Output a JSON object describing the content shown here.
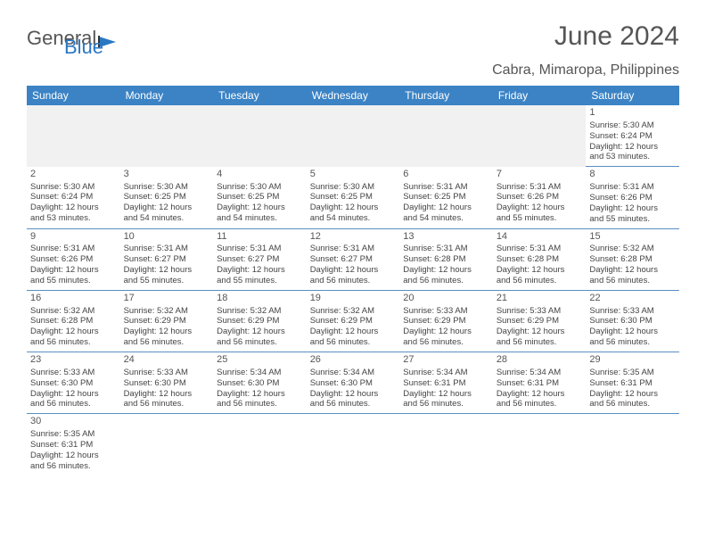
{
  "logo": {
    "text1": "General",
    "text2": "Blue"
  },
  "title": "June 2024",
  "location": "Cabra, Mimaropa, Philippines",
  "weekdays": [
    "Sunday",
    "Monday",
    "Tuesday",
    "Wednesday",
    "Thursday",
    "Friday",
    "Saturday"
  ],
  "colors": {
    "header_bg": "#3b83c5",
    "header_text": "#ffffff",
    "title_text": "#555555",
    "cell_border": "#5a8fc2",
    "blank_bg": "#f1f1f1",
    "logo_blue": "#2a77c2"
  },
  "grid": [
    [
      null,
      null,
      null,
      null,
      null,
      null,
      {
        "n": "1",
        "sr": "Sunrise: 5:30 AM",
        "ss": "Sunset: 6:24 PM",
        "d1": "Daylight: 12 hours",
        "d2": "and 53 minutes."
      }
    ],
    [
      {
        "n": "2",
        "sr": "Sunrise: 5:30 AM",
        "ss": "Sunset: 6:24 PM",
        "d1": "Daylight: 12 hours",
        "d2": "and 53 minutes."
      },
      {
        "n": "3",
        "sr": "Sunrise: 5:30 AM",
        "ss": "Sunset: 6:25 PM",
        "d1": "Daylight: 12 hours",
        "d2": "and 54 minutes."
      },
      {
        "n": "4",
        "sr": "Sunrise: 5:30 AM",
        "ss": "Sunset: 6:25 PM",
        "d1": "Daylight: 12 hours",
        "d2": "and 54 minutes."
      },
      {
        "n": "5",
        "sr": "Sunrise: 5:30 AM",
        "ss": "Sunset: 6:25 PM",
        "d1": "Daylight: 12 hours",
        "d2": "and 54 minutes."
      },
      {
        "n": "6",
        "sr": "Sunrise: 5:31 AM",
        "ss": "Sunset: 6:25 PM",
        "d1": "Daylight: 12 hours",
        "d2": "and 54 minutes."
      },
      {
        "n": "7",
        "sr": "Sunrise: 5:31 AM",
        "ss": "Sunset: 6:26 PM",
        "d1": "Daylight: 12 hours",
        "d2": "and 55 minutes."
      },
      {
        "n": "8",
        "sr": "Sunrise: 5:31 AM",
        "ss": "Sunset: 6:26 PM",
        "d1": "Daylight: 12 hours",
        "d2": "and 55 minutes."
      }
    ],
    [
      {
        "n": "9",
        "sr": "Sunrise: 5:31 AM",
        "ss": "Sunset: 6:26 PM",
        "d1": "Daylight: 12 hours",
        "d2": "and 55 minutes."
      },
      {
        "n": "10",
        "sr": "Sunrise: 5:31 AM",
        "ss": "Sunset: 6:27 PM",
        "d1": "Daylight: 12 hours",
        "d2": "and 55 minutes."
      },
      {
        "n": "11",
        "sr": "Sunrise: 5:31 AM",
        "ss": "Sunset: 6:27 PM",
        "d1": "Daylight: 12 hours",
        "d2": "and 55 minutes."
      },
      {
        "n": "12",
        "sr": "Sunrise: 5:31 AM",
        "ss": "Sunset: 6:27 PM",
        "d1": "Daylight: 12 hours",
        "d2": "and 56 minutes."
      },
      {
        "n": "13",
        "sr": "Sunrise: 5:31 AM",
        "ss": "Sunset: 6:28 PM",
        "d1": "Daylight: 12 hours",
        "d2": "and 56 minutes."
      },
      {
        "n": "14",
        "sr": "Sunrise: 5:31 AM",
        "ss": "Sunset: 6:28 PM",
        "d1": "Daylight: 12 hours",
        "d2": "and 56 minutes."
      },
      {
        "n": "15",
        "sr": "Sunrise: 5:32 AM",
        "ss": "Sunset: 6:28 PM",
        "d1": "Daylight: 12 hours",
        "d2": "and 56 minutes."
      }
    ],
    [
      {
        "n": "16",
        "sr": "Sunrise: 5:32 AM",
        "ss": "Sunset: 6:28 PM",
        "d1": "Daylight: 12 hours",
        "d2": "and 56 minutes."
      },
      {
        "n": "17",
        "sr": "Sunrise: 5:32 AM",
        "ss": "Sunset: 6:29 PM",
        "d1": "Daylight: 12 hours",
        "d2": "and 56 minutes."
      },
      {
        "n": "18",
        "sr": "Sunrise: 5:32 AM",
        "ss": "Sunset: 6:29 PM",
        "d1": "Daylight: 12 hours",
        "d2": "and 56 minutes."
      },
      {
        "n": "19",
        "sr": "Sunrise: 5:32 AM",
        "ss": "Sunset: 6:29 PM",
        "d1": "Daylight: 12 hours",
        "d2": "and 56 minutes."
      },
      {
        "n": "20",
        "sr": "Sunrise: 5:33 AM",
        "ss": "Sunset: 6:29 PM",
        "d1": "Daylight: 12 hours",
        "d2": "and 56 minutes."
      },
      {
        "n": "21",
        "sr": "Sunrise: 5:33 AM",
        "ss": "Sunset: 6:29 PM",
        "d1": "Daylight: 12 hours",
        "d2": "and 56 minutes."
      },
      {
        "n": "22",
        "sr": "Sunrise: 5:33 AM",
        "ss": "Sunset: 6:30 PM",
        "d1": "Daylight: 12 hours",
        "d2": "and 56 minutes."
      }
    ],
    [
      {
        "n": "23",
        "sr": "Sunrise: 5:33 AM",
        "ss": "Sunset: 6:30 PM",
        "d1": "Daylight: 12 hours",
        "d2": "and 56 minutes."
      },
      {
        "n": "24",
        "sr": "Sunrise: 5:33 AM",
        "ss": "Sunset: 6:30 PM",
        "d1": "Daylight: 12 hours",
        "d2": "and 56 minutes."
      },
      {
        "n": "25",
        "sr": "Sunrise: 5:34 AM",
        "ss": "Sunset: 6:30 PM",
        "d1": "Daylight: 12 hours",
        "d2": "and 56 minutes."
      },
      {
        "n": "26",
        "sr": "Sunrise: 5:34 AM",
        "ss": "Sunset: 6:30 PM",
        "d1": "Daylight: 12 hours",
        "d2": "and 56 minutes."
      },
      {
        "n": "27",
        "sr": "Sunrise: 5:34 AM",
        "ss": "Sunset: 6:31 PM",
        "d1": "Daylight: 12 hours",
        "d2": "and 56 minutes."
      },
      {
        "n": "28",
        "sr": "Sunrise: 5:34 AM",
        "ss": "Sunset: 6:31 PM",
        "d1": "Daylight: 12 hours",
        "d2": "and 56 minutes."
      },
      {
        "n": "29",
        "sr": "Sunrise: 5:35 AM",
        "ss": "Sunset: 6:31 PM",
        "d1": "Daylight: 12 hours",
        "d2": "and 56 minutes."
      }
    ],
    [
      {
        "n": "30",
        "sr": "Sunrise: 5:35 AM",
        "ss": "Sunset: 6:31 PM",
        "d1": "Daylight: 12 hours",
        "d2": "and 56 minutes."
      },
      null,
      null,
      null,
      null,
      null,
      null
    ]
  ]
}
